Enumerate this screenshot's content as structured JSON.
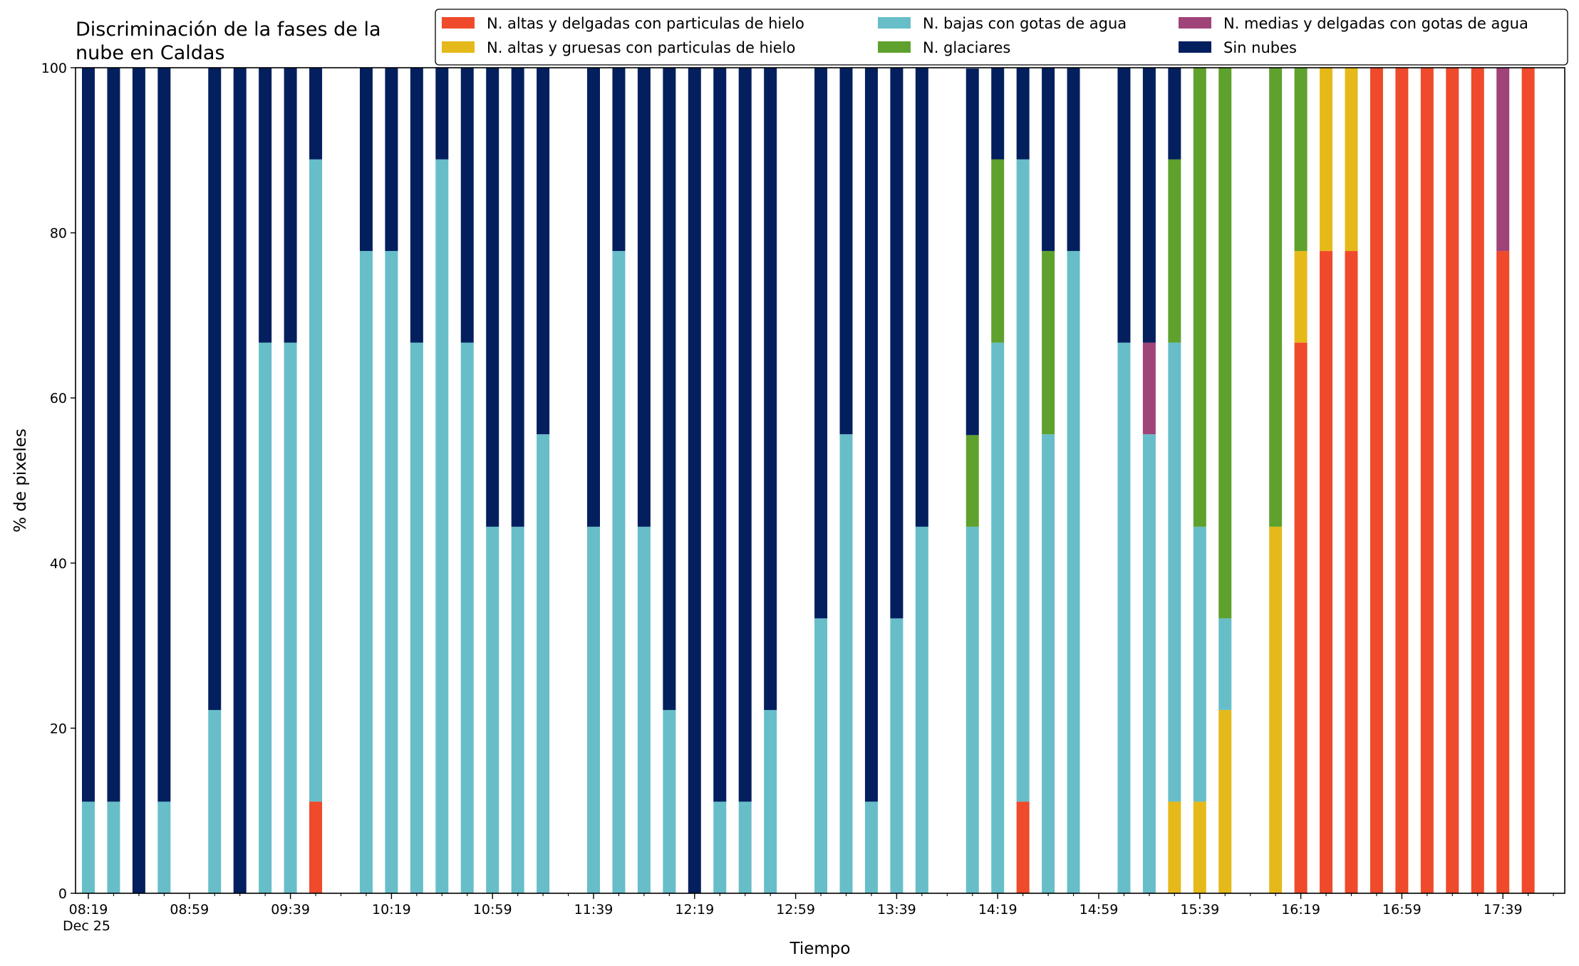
{
  "chart_data": {
    "type": "bar",
    "stacked": true,
    "title_lines": [
      "Discriminación de la fases de la",
      "nube en Caldas"
    ],
    "xlabel": "Tiempo",
    "ylabel": "% de pixeles",
    "ylim": [
      0,
      100
    ],
    "yticks": [
      "0",
      "20",
      "40",
      "60",
      "80",
      "100"
    ],
    "grid": false,
    "legend_position": "top-right",
    "x_start": "08:19",
    "x_end": "17:59",
    "x_tick_labels": [
      {
        "time": "08:19",
        "label": "08:19",
        "sublabel": "Dec 25"
      },
      {
        "time": "08:59",
        "label": "08:59"
      },
      {
        "time": "09:39",
        "label": "09:39"
      },
      {
        "time": "10:19",
        "label": "10:19"
      },
      {
        "time": "10:59",
        "label": "10:59"
      },
      {
        "time": "11:39",
        "label": "11:39"
      },
      {
        "time": "12:19",
        "label": "12:19"
      },
      {
        "time": "12:59",
        "label": "12:59"
      },
      {
        "time": "13:39",
        "label": "13:39"
      },
      {
        "time": "14:19",
        "label": "14:19"
      },
      {
        "time": "14:59",
        "label": "14:59"
      },
      {
        "time": "15:39",
        "label": "15:39"
      },
      {
        "time": "16:19",
        "label": "16:19"
      },
      {
        "time": "16:59",
        "label": "16:59"
      },
      {
        "time": "17:39",
        "label": "17:39"
      }
    ],
    "x_minor_ticks": [
      "08:29",
      "08:39",
      "08:49",
      "09:09",
      "09:19",
      "09:29",
      "09:49",
      "09:59",
      "10:09",
      "10:29",
      "10:39",
      "10:49",
      "11:09",
      "11:19",
      "11:29",
      "11:49",
      "11:59",
      "12:09",
      "12:29",
      "12:39",
      "12:49",
      "13:09",
      "13:19",
      "13:29",
      "13:49",
      "13:59",
      "14:09",
      "14:29",
      "14:39",
      "14:49",
      "15:09",
      "15:19",
      "15:29",
      "15:49",
      "15:59",
      "16:09",
      "16:29",
      "16:39",
      "16:49",
      "17:09",
      "17:19",
      "17:29",
      "17:49",
      "17:59"
    ],
    "series": [
      {
        "key": "altas_delgadas",
        "name": "N. altas y delgadas con particulas de hielo",
        "color": "#ee4a2b"
      },
      {
        "key": "altas_gruesas",
        "name": "N. altas y gruesas con particulas de hielo",
        "color": "#e6b91a"
      },
      {
        "key": "bajas",
        "name": "N. bajas con gotas de agua",
        "color": "#67bec9"
      },
      {
        "key": "glaciares",
        "name": "N. glaciares",
        "color": "#5fa12d"
      },
      {
        "key": "medias",
        "name": "N. medias y delgadas con gotas de agua",
        "color": "#a04379"
      },
      {
        "key": "sin_nubes",
        "name": "Sin nubes",
        "color": "#031f5e"
      }
    ],
    "bars": [
      {
        "time": "08:19",
        "values": [
          0,
          0,
          11.1,
          0,
          0,
          88.9
        ]
      },
      {
        "time": "08:29",
        "values": [
          0,
          0,
          11.1,
          0,
          0,
          88.9
        ]
      },
      {
        "time": "08:39",
        "values": [
          0,
          0,
          0,
          0,
          0,
          100
        ]
      },
      {
        "time": "08:49",
        "values": [
          0,
          0,
          11.1,
          0,
          0,
          88.9
        ]
      },
      {
        "time": "09:09",
        "values": [
          0,
          0,
          22.2,
          0,
          0,
          77.8
        ]
      },
      {
        "time": "09:19",
        "values": [
          0,
          0,
          0,
          0,
          0,
          100
        ]
      },
      {
        "time": "09:29",
        "values": [
          0,
          0,
          66.7,
          0,
          0,
          33.3
        ]
      },
      {
        "time": "09:39",
        "values": [
          0,
          0,
          66.7,
          0,
          0,
          33.3
        ]
      },
      {
        "time": "09:49",
        "values": [
          11.1,
          0,
          77.8,
          0,
          0,
          11.1
        ]
      },
      {
        "time": "10:09",
        "values": [
          0,
          0,
          77.8,
          0,
          0,
          22.2
        ]
      },
      {
        "time": "10:19",
        "values": [
          0,
          0,
          77.8,
          0,
          0,
          22.2
        ]
      },
      {
        "time": "10:29",
        "values": [
          0,
          0,
          66.7,
          0,
          0,
          33.3
        ]
      },
      {
        "time": "10:39",
        "values": [
          0,
          0,
          88.9,
          0,
          0,
          11.1
        ]
      },
      {
        "time": "10:49",
        "values": [
          0,
          0,
          66.7,
          0,
          0,
          33.3
        ]
      },
      {
        "time": "10:59",
        "values": [
          0,
          0,
          44.4,
          0,
          0,
          55.6
        ]
      },
      {
        "time": "11:09",
        "values": [
          0,
          0,
          44.4,
          0,
          0,
          55.6
        ]
      },
      {
        "time": "11:19",
        "values": [
          0,
          0,
          55.6,
          0,
          0,
          44.4
        ]
      },
      {
        "time": "11:39",
        "values": [
          0,
          0,
          44.4,
          0,
          0,
          55.6
        ]
      },
      {
        "time": "11:49",
        "values": [
          0,
          0,
          77.8,
          0,
          0,
          22.2
        ]
      },
      {
        "time": "11:59",
        "values": [
          0,
          0,
          44.4,
          0,
          0,
          55.6
        ]
      },
      {
        "time": "12:09",
        "values": [
          0,
          0,
          22.2,
          0,
          0,
          77.8
        ]
      },
      {
        "time": "12:19",
        "values": [
          0,
          0,
          0,
          0,
          0,
          100
        ]
      },
      {
        "time": "12:29",
        "values": [
          0,
          0,
          11.1,
          0,
          0,
          88.9
        ]
      },
      {
        "time": "12:39",
        "values": [
          0,
          0,
          11.1,
          0,
          0,
          88.9
        ]
      },
      {
        "time": "12:49",
        "values": [
          0,
          0,
          22.2,
          0,
          0,
          77.8
        ]
      },
      {
        "time": "13:09",
        "values": [
          0,
          0,
          33.3,
          0,
          0,
          66.7
        ]
      },
      {
        "time": "13:19",
        "values": [
          0,
          0,
          55.6,
          0,
          0,
          44.4
        ]
      },
      {
        "time": "13:29",
        "values": [
          0,
          0,
          11.1,
          0,
          0,
          88.9
        ]
      },
      {
        "time": "13:39",
        "values": [
          0,
          0,
          33.3,
          0,
          0,
          66.7
        ]
      },
      {
        "time": "13:49",
        "values": [
          0,
          0,
          44.4,
          0,
          0,
          55.6
        ]
      },
      {
        "time": "14:09",
        "values": [
          0,
          0,
          44.4,
          11.1,
          0,
          44.4
        ]
      },
      {
        "time": "14:19",
        "values": [
          0,
          0,
          66.7,
          22.2,
          0,
          11.1
        ]
      },
      {
        "time": "14:29",
        "values": [
          11.1,
          0,
          77.8,
          0,
          0,
          11.1
        ]
      },
      {
        "time": "14:39",
        "values": [
          0,
          0,
          55.6,
          22.2,
          0,
          22.2
        ]
      },
      {
        "time": "14:49",
        "values": [
          0,
          0,
          77.8,
          0,
          0,
          22.2
        ]
      },
      {
        "time": "15:09",
        "values": [
          0,
          0,
          66.7,
          0,
          0,
          33.3
        ]
      },
      {
        "time": "15:19",
        "values": [
          0,
          0,
          55.6,
          0,
          11.1,
          33.3
        ]
      },
      {
        "time": "15:29",
        "values": [
          0,
          11.1,
          55.6,
          22.2,
          0,
          11.1
        ]
      },
      {
        "time": "15:39",
        "values": [
          0,
          11.1,
          33.3,
          55.6,
          0,
          0
        ]
      },
      {
        "time": "15:49",
        "values": [
          0,
          22.2,
          11.1,
          66.7,
          0,
          0
        ]
      },
      {
        "time": "16:09",
        "values": [
          0,
          44.4,
          0,
          55.6,
          0,
          0
        ]
      },
      {
        "time": "16:19",
        "values": [
          66.7,
          11.1,
          0,
          22.2,
          0,
          0
        ]
      },
      {
        "time": "16:29",
        "values": [
          77.8,
          22.2,
          0,
          0,
          0,
          0
        ]
      },
      {
        "time": "16:39",
        "values": [
          77.8,
          22.2,
          0,
          0,
          0,
          0
        ]
      },
      {
        "time": "16:49",
        "values": [
          100,
          0,
          0,
          0,
          0,
          0
        ]
      },
      {
        "time": "16:59",
        "values": [
          100,
          0,
          0,
          0,
          0,
          0
        ]
      },
      {
        "time": "17:09",
        "values": [
          100,
          0,
          0,
          0,
          0,
          0
        ]
      },
      {
        "time": "17:19",
        "values": [
          100,
          0,
          0,
          0,
          0,
          0
        ]
      },
      {
        "time": "17:29",
        "values": [
          100,
          0,
          0,
          0,
          0,
          0
        ]
      },
      {
        "time": "17:39",
        "values": [
          77.8,
          0,
          0,
          0,
          22.2,
          0
        ]
      },
      {
        "time": "17:49",
        "values": [
          100,
          0,
          0,
          0,
          0,
          0
        ]
      }
    ]
  }
}
